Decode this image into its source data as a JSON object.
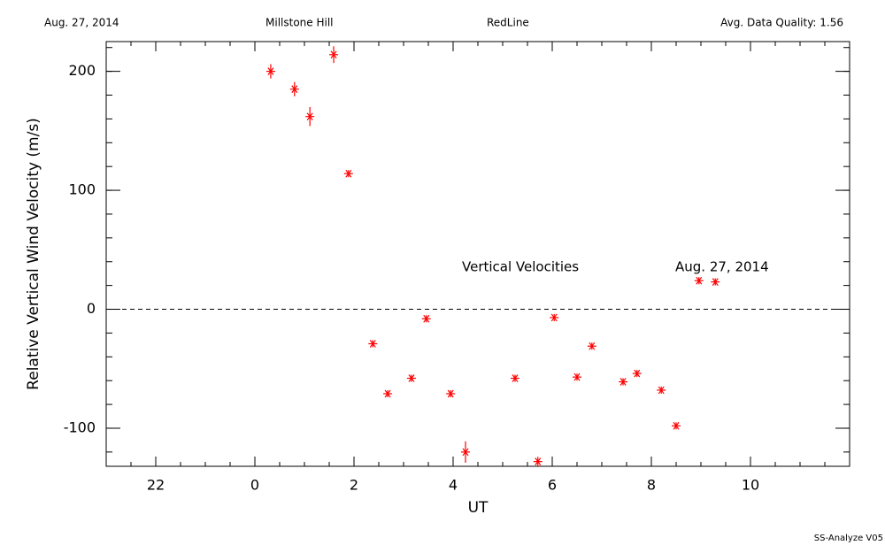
{
  "chart_data": {
    "type": "scatter",
    "header": [
      "Aug. 27, 2014",
      "Millstone Hill",
      "RedLine",
      "Avg. Data Quality: 1.56"
    ],
    "xlabel": "UT",
    "ylabel": "Relative Vertical Wind Velocity (m/s)",
    "annotations": [
      "Vertical Velocities",
      "Aug. 27, 2014"
    ],
    "footer": "SS-Analyze V05",
    "series": [
      {
        "name": "Vertical Velocities",
        "color": "#ff0000",
        "x": [
          0.32,
          0.8,
          1.11,
          1.59,
          1.89,
          2.38,
          2.68,
          3.16,
          3.46,
          3.95,
          4.25,
          5.25,
          5.71,
          6.04,
          6.5,
          6.8,
          7.43,
          7.71,
          8.2,
          8.5,
          8.96,
          9.29
        ],
        "values": [
          200,
          185,
          162,
          214,
          114,
          -29,
          -71,
          -58,
          -8,
          -71,
          -120,
          -58,
          -128,
          -7,
          -57,
          -31,
          -61,
          -54,
          -68,
          -98,
          24,
          23
        ],
        "errors": [
          6,
          6,
          8,
          7,
          3,
          3,
          3,
          3,
          3,
          3,
          9,
          3,
          4,
          3,
          3,
          3,
          3,
          3,
          3,
          3,
          3,
          3
        ]
      }
    ],
    "xlim": [
      -3,
      12
    ],
    "xticks": [
      {
        "value": -2,
        "label": "22"
      },
      0,
      2,
      4,
      6,
      8,
      10
    ],
    "xminor_step": 0.5,
    "ylim": [
      -132,
      225
    ],
    "yticks": [
      -100,
      0,
      100,
      200
    ],
    "yminor_step": 20,
    "reference_line": 0
  }
}
